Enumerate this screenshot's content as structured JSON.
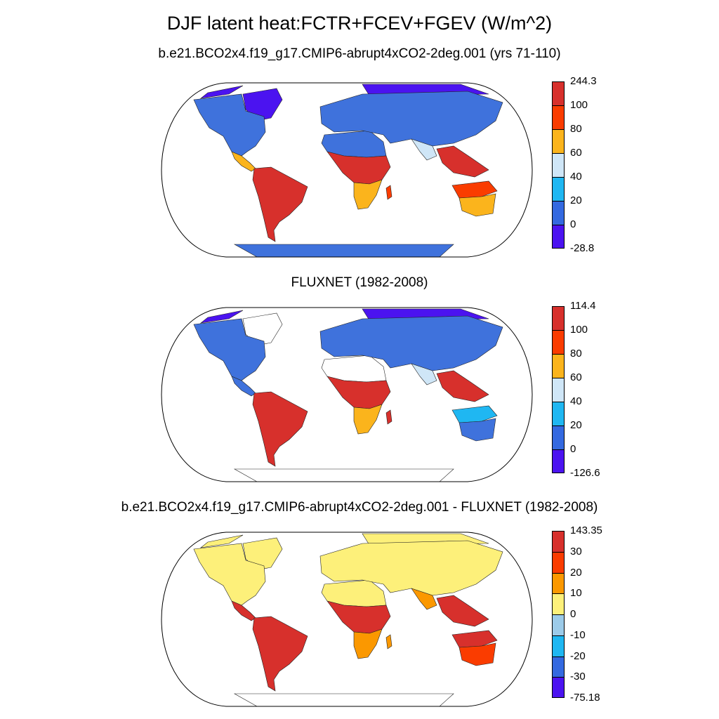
{
  "title": "DJF latent heat:FCTR+FCEV+FGEV (W/m^2)",
  "panels": [
    {
      "title": "b.e21.BCO2x4.f19_g17.CMIP6-abrupt4xCO2-2deg.001 (yrs 71-110)",
      "colorbar": {
        "labels": [
          "244.3",
          "100",
          "80",
          "60",
          "40",
          "20",
          "0",
          "-28.8"
        ],
        "colors": [
          "#d7302c",
          "#fa3c00",
          "#fbb41c",
          "#cfe6f7",
          "#1fb7f2",
          "#3469e0",
          "#4b13f0"
        ]
      },
      "regions": {
        "north_america": "#3f72dc",
        "central_america": "#fbb41c",
        "south_america": "#d7302c",
        "africa_north": "#3f72dc",
        "africa_central": "#d7302c",
        "africa_south": "#fbb41c",
        "madagascar": "#fa3c00",
        "eurasia": "#3f72dc",
        "arctic": "#4b13f0",
        "south_asia": "#cfe6f7",
        "southeast_asia": "#d7302c",
        "australia_north": "#fa3c00",
        "australia_south": "#fbb41c",
        "antarctica": "#3f72dc",
        "greenland": "#4b13f0"
      }
    },
    {
      "title": "FLUXNET (1982-2008)",
      "colorbar": {
        "labels": [
          "114.4",
          "100",
          "80",
          "60",
          "40",
          "20",
          "0",
          "-126.6"
        ],
        "colors": [
          "#d7302c",
          "#fa3c00",
          "#fbb41c",
          "#cfe6f7",
          "#1fb7f2",
          "#3469e0",
          "#4b13f0"
        ]
      },
      "regions": {
        "north_america": "#3f72dc",
        "central_america": "#3f72dc",
        "south_america": "#d7302c",
        "africa_north": "#ffffff",
        "africa_central": "#d7302c",
        "africa_south": "#fbb41c",
        "madagascar": "#d7302c",
        "eurasia": "#3f72dc",
        "arctic": "#4b13f0",
        "south_asia": "#cfe6f7",
        "southeast_asia": "#d7302c",
        "australia_north": "#1fb7f2",
        "australia_south": "#3f72dc",
        "antarctica": "#ffffff",
        "greenland": "#ffffff"
      }
    },
    {
      "title": "b.e21.BCO2x4.f19_g17.CMIP6-abrupt4xCO2-2deg.001 - FLUXNET (1982-2008)",
      "colorbar": {
        "labels": [
          "143.35",
          "30",
          "20",
          "10",
          "0",
          "-10",
          "-20",
          "-30",
          "-75.18"
        ],
        "colors": [
          "#d7302c",
          "#fa3c00",
          "#fb9800",
          "#fdf07a",
          "#9ccbe9",
          "#1fb7f2",
          "#3469e0",
          "#4b13f0"
        ]
      },
      "regions": {
        "north_america": "#fdf07a",
        "central_america": "#d7302c",
        "south_america": "#d7302c",
        "africa_north": "#fdf07a",
        "africa_central": "#d7302c",
        "africa_south": "#fb9800",
        "madagascar": "#fb9800",
        "eurasia": "#fdf07a",
        "arctic": "#fdf07a",
        "south_asia": "#fb9800",
        "southeast_asia": "#d7302c",
        "australia_north": "#d7302c",
        "australia_south": "#fa3c00",
        "antarctica": "#ffffff",
        "greenland": "#fdf07a"
      }
    }
  ]
}
